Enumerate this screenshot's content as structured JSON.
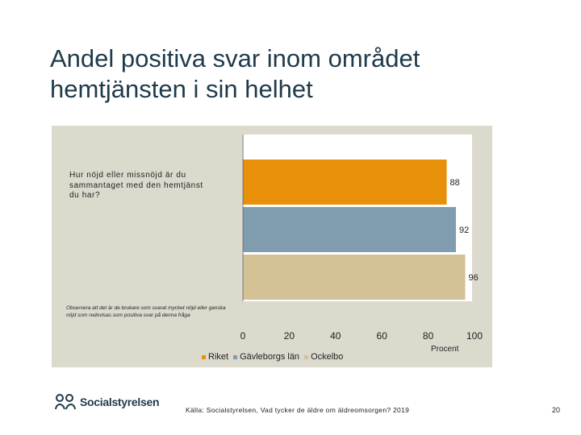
{
  "slide": {
    "title": "Andel positiva svar inom området hemtjänsten i sin helhet",
    "question": "Hur nöjd eller missnöjd är du sammantaget med den hemtjänst du har?",
    "note": "Observera att det är de brukare som svarat mycket nöjd eller ganska nöjd som redovisas som positiva svar på denna fråga",
    "source": "Källa: Socialstyrelsen, Vad tycker de äldre om äldreomsorgen? 2019",
    "page_number": "20",
    "logo_text": "Socialstyrelsen"
  },
  "chart_data": {
    "type": "bar",
    "orientation": "horizontal",
    "categories": [
      "Hur nöjd eller missnöjd är du sammantaget med den hemtjänst du har?"
    ],
    "series": [
      {
        "name": "Riket",
        "values": [
          88
        ],
        "color": "#e8900a"
      },
      {
        "name": "Gävleborgs län",
        "values": [
          92
        ],
        "color": "#7f9dae"
      },
      {
        "name": "Ockelbo",
        "values": [
          96
        ],
        "color": "#d4c196"
      }
    ],
    "xlabel": "Procent",
    "xlim": [
      0,
      100
    ],
    "xticks": [
      "0",
      "20",
      "40",
      "60",
      "80",
      "100"
    ],
    "legend_position": "bottom",
    "grid": false
  }
}
